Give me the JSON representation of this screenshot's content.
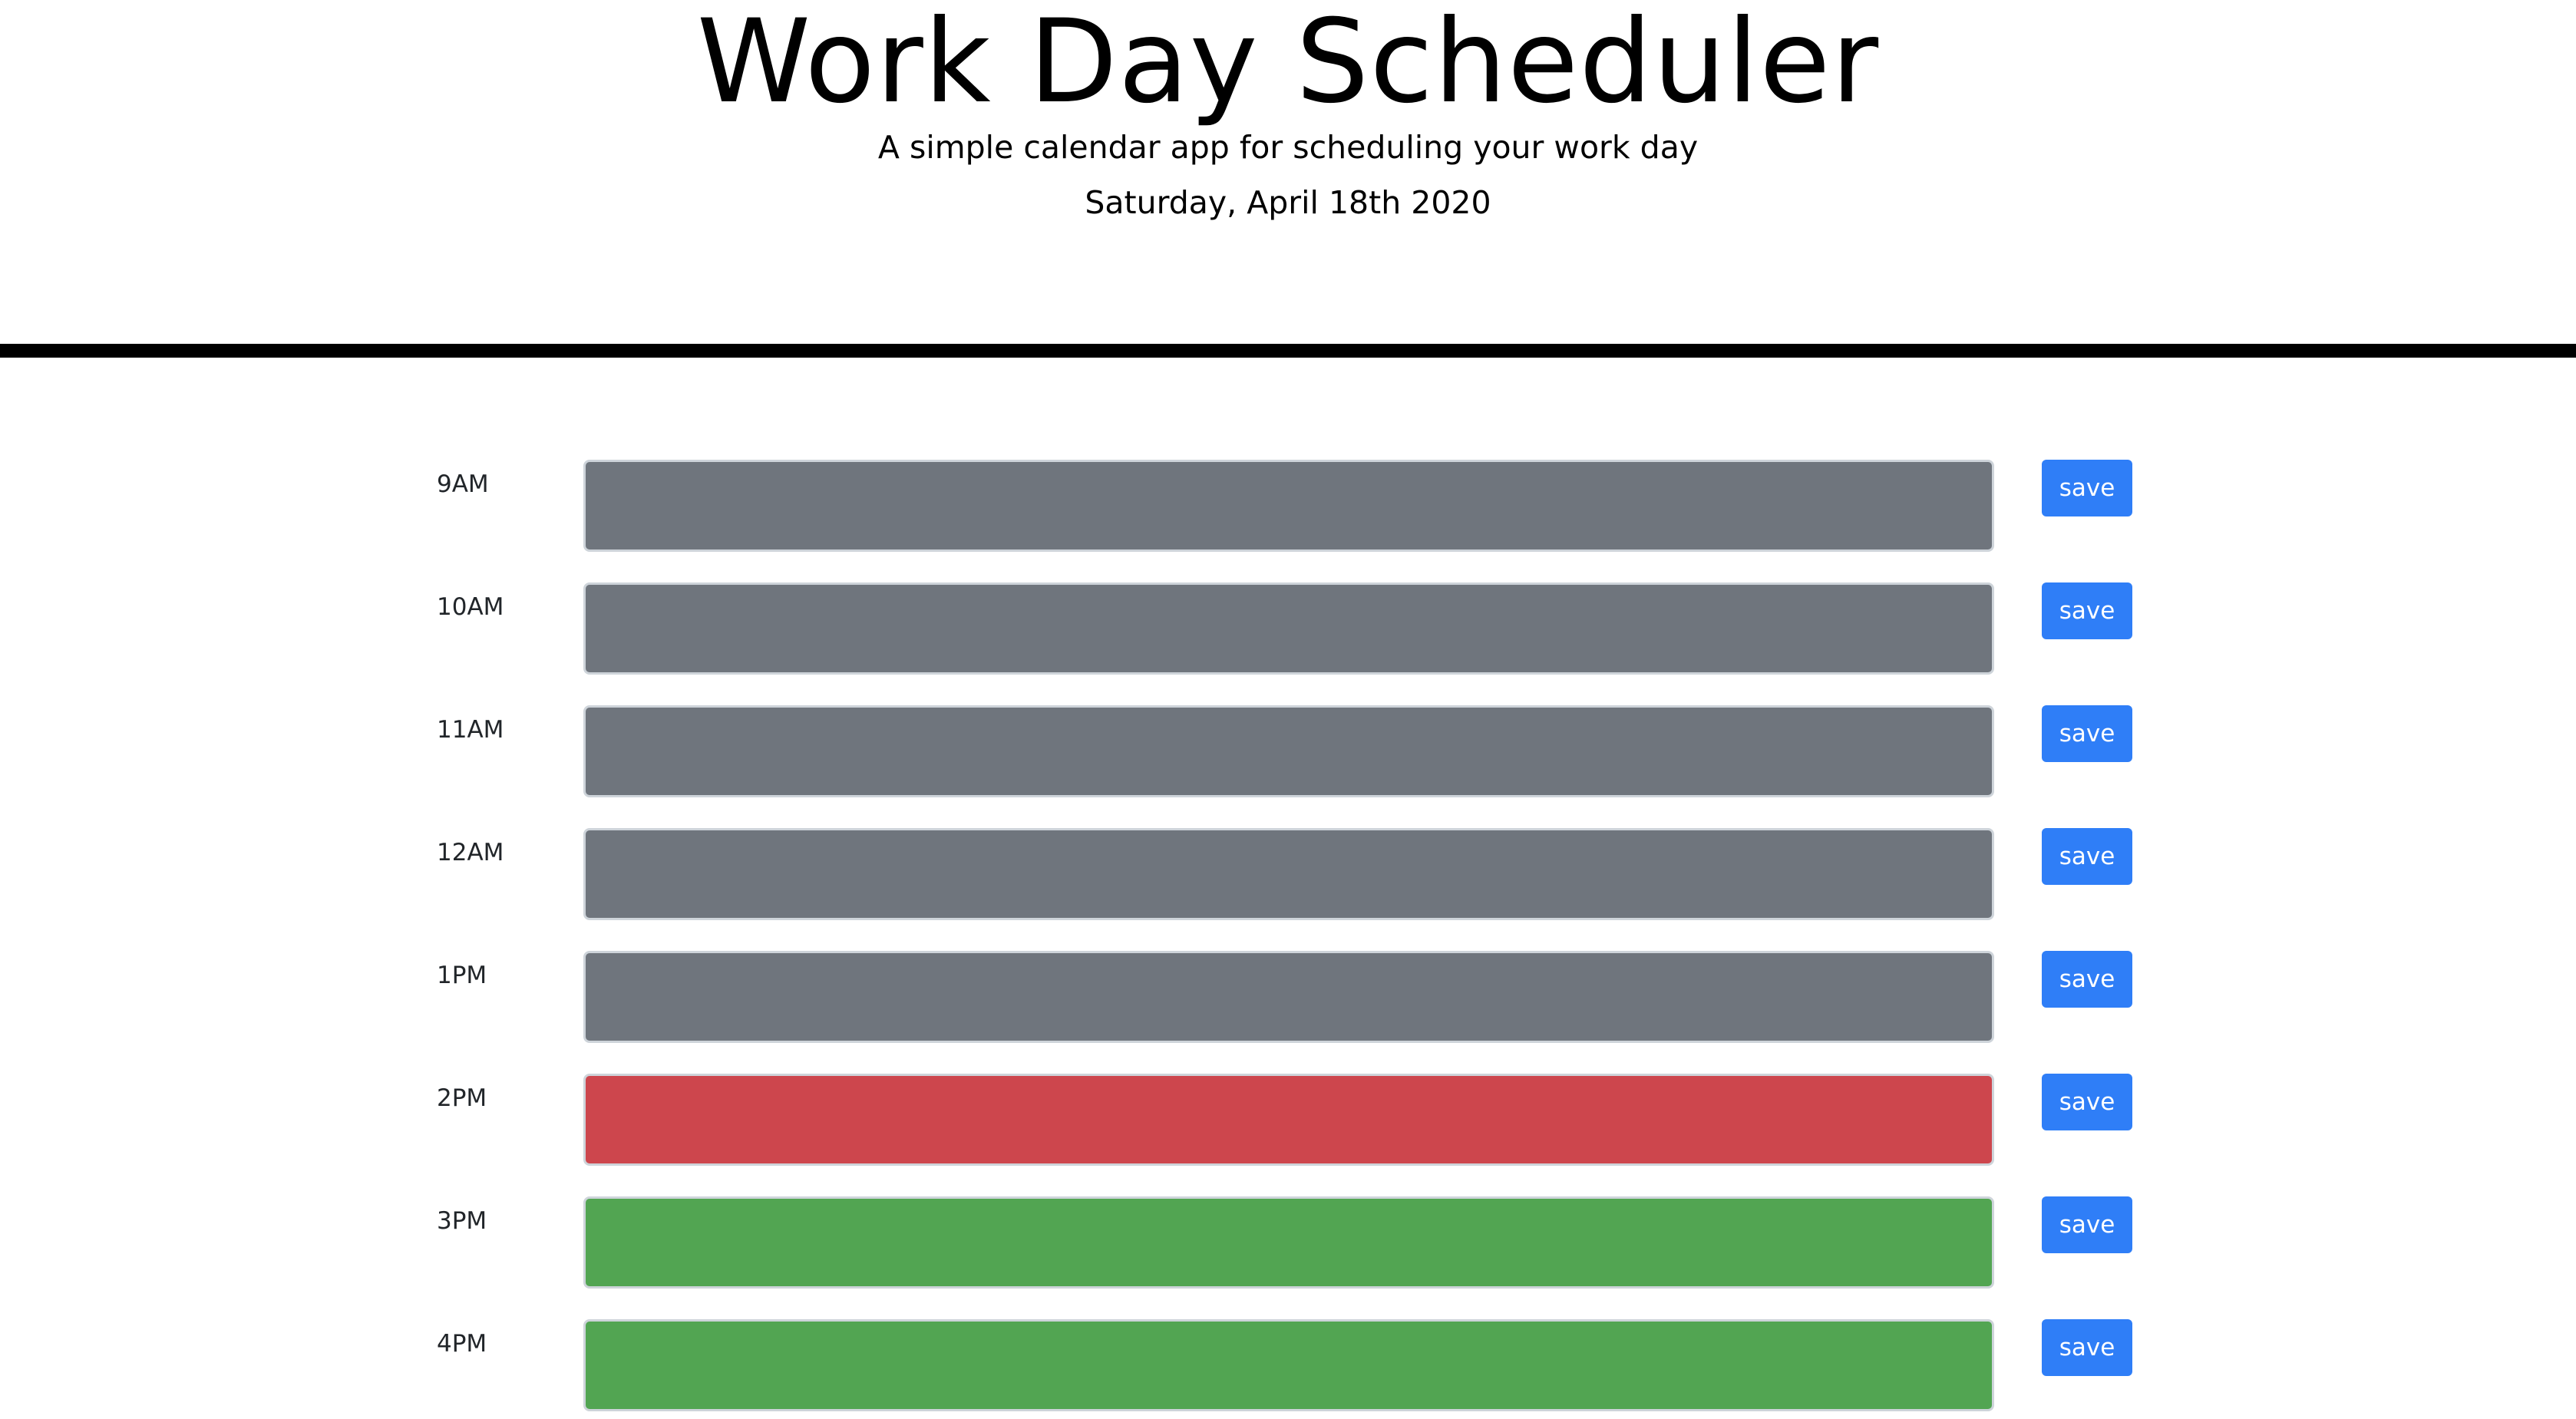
{
  "header": {
    "title": "Work Day Scheduler",
    "subtitle": "A simple calendar app for scheduling your work day",
    "current_date": "Saturday, April 18th 2020"
  },
  "colors": {
    "past": "#6f757d",
    "present": "#cd464d",
    "future": "#52a552",
    "save_button": "#2f7ef7"
  },
  "schedule": [
    {
      "hour": "9AM",
      "text": "",
      "state": "past",
      "save_label": "save"
    },
    {
      "hour": "10AM",
      "text": "",
      "state": "past",
      "save_label": "save"
    },
    {
      "hour": "11AM",
      "text": "",
      "state": "past",
      "save_label": "save"
    },
    {
      "hour": "12AM",
      "text": "",
      "state": "past",
      "save_label": "save"
    },
    {
      "hour": "1PM",
      "text": "",
      "state": "past",
      "save_label": "save"
    },
    {
      "hour": "2PM",
      "text": "",
      "state": "present",
      "save_label": "save"
    },
    {
      "hour": "3PM",
      "text": "",
      "state": "future",
      "save_label": "save"
    },
    {
      "hour": "4PM",
      "text": "",
      "state": "future",
      "save_label": "save"
    }
  ]
}
